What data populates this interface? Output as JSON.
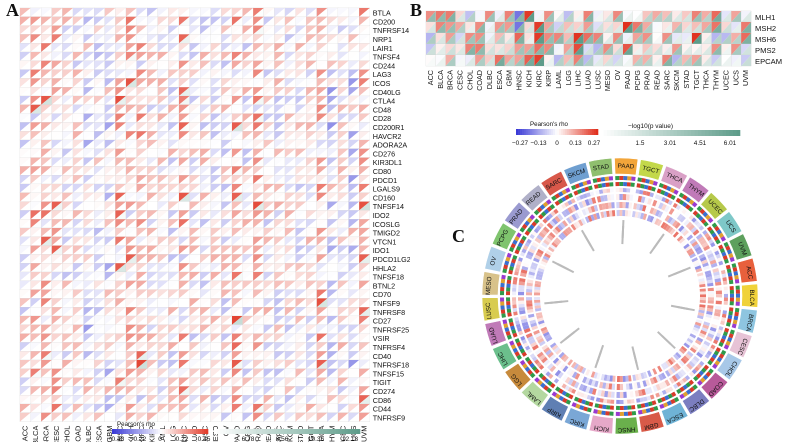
{
  "panels": {
    "a": "A",
    "b": "B",
    "c": "C"
  },
  "colors": {
    "neg": "#3b3bd6",
    "pos": "#e0301e",
    "mid": "#ffffff",
    "pval_low": "#ffffff",
    "pval_high": "#5e9c8a",
    "star": "#222222"
  },
  "cancers": [
    "ACC",
    "BLCA",
    "BRCA",
    "CESC",
    "CHOL",
    "COAD",
    "DLBC",
    "ESCA",
    "GBM",
    "HNSC",
    "KICH",
    "KIRC",
    "KIRP",
    "LAML",
    "LGG",
    "LIHC",
    "LUAD",
    "LUSC",
    "MESO",
    "OV",
    "PAAD",
    "PCPG",
    "PRAD",
    "READ",
    "SARC",
    "SKCM",
    "STAD",
    "TGCT",
    "THCA",
    "THYM",
    "UCEC",
    "UCS",
    "UVM"
  ],
  "chart_data": [
    {
      "type": "heatmap",
      "panel": "A",
      "description_rows_are_genes": true,
      "rows": [
        "BTLA",
        "CD200",
        "TNFRSF14",
        "NRP1",
        "LAIR1",
        "TNFSF4",
        "CD244",
        "LAG3",
        "ICOS",
        "CD40LG",
        "CTLA4",
        "CD48",
        "CD28",
        "CD200R1",
        "HAVCR2",
        "ADORA2A",
        "CD276",
        "KIR3DL1",
        "CD80",
        "PDCD1",
        "LGALS9",
        "CD160",
        "TNFSF14",
        "IDO2",
        "ICOSLG",
        "TMIGD2",
        "VTCN1",
        "IDO1",
        "PDCD1LG2",
        "HHLA2",
        "TNFSF18",
        "BTNL2",
        "CD70",
        "TNFSF9",
        "TNFRSF8",
        "CD27",
        "TNFRSF25",
        "VSIR",
        "TNFRSF4",
        "CD40",
        "TNFRSF18",
        "TNFSF15",
        "TIGIT",
        "CD274",
        "CD86",
        "CD44",
        "TNFRSF9"
      ],
      "legend": {
        "rho_title": "Pearson's rho",
        "rho_ticks": [
          "−0.48",
          "−0.22",
          "0",
          "0.22",
          "0.45"
        ],
        "rho_range": [
          -0.48,
          0.45
        ],
        "p_title": "−log10(p value)",
        "p_ticks": [
          "6.78",
          "8.56",
          "10.35",
          "12.13"
        ],
        "p_range": [
          5.0,
          12.13
        ]
      }
    },
    {
      "type": "heatmap",
      "panel": "B",
      "rows": [
        "MLH1",
        "MSH2",
        "MSH6",
        "PMS2",
        "EPCAM"
      ],
      "legend": {
        "rho_title": "Pearson's rho",
        "rho_ticks": [
          "−0.27",
          "−0.13",
          "0",
          "0.13",
          "0.27"
        ],
        "rho_range": [
          -0.27,
          0.27
        ],
        "p_title": "−log10(p value)",
        "p_ticks": [
          "1.5",
          "3.01",
          "4.51",
          "6.01"
        ],
        "p_range": [
          0,
          6.01
        ]
      }
    },
    {
      "type": "heatmap",
      "panel": "C",
      "layout": "circular",
      "sectors": [
        "PAAD",
        "TGCT",
        "THCA",
        "THYM",
        "UCEC",
        "UCS",
        "UVM",
        "ACC",
        "BLCA",
        "BRCA",
        "CESC",
        "CHOL",
        "COAD",
        "DLBC",
        "ESCA",
        "GBM",
        "HNSC",
        "KICH",
        "KIRC",
        "KIRP",
        "LAML",
        "LGG",
        "LIHC",
        "LUAD",
        "LUSC",
        "MESO",
        "OV",
        "PCPG",
        "PRAD",
        "READ",
        "SARC",
        "SKCM",
        "STAD"
      ],
      "sector_colors": [
        "#f2a53a",
        "#c3d84a",
        "#d9a0c6",
        "#c07ab8",
        "#b6c94a",
        "#7ec8c8",
        "#5da05d",
        "#e8603c",
        "#f0d23a",
        "#8ec5e0",
        "#e7c3d6",
        "#a8c8e8",
        "#b85a9a",
        "#7b7ec0",
        "#6fb3d6",
        "#d85a48",
        "#6ab04c",
        "#e6a8c8",
        "#7aa7d6",
        "#5f7fb3",
        "#b4d8a0",
        "#c78a3c",
        "#6bbf8c",
        "#c07ab8",
        "#d8cc50",
        "#d8c28a",
        "#b0d0e8",
        "#7fc46e",
        "#9a9ad0",
        "#b0b0c8",
        "#d8584a",
        "#6f9fd0",
        "#8fbf6e"
      ]
    }
  ]
}
